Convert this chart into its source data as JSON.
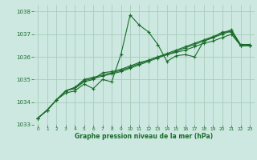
{
  "bg_color": "#cce8e0",
  "grid_color": "#aaccbb",
  "line_color": "#1a6b2a",
  "marker_color": "#1a6b2a",
  "xlabel": "Graphe pression niveau de la mer (hPa)",
  "xlabel_color": "#1a6b2a",
  "ylim": [
    1033.0,
    1038.3
  ],
  "xlim": [
    -0.5,
    23.5
  ],
  "yticks": [
    1033,
    1034,
    1035,
    1036,
    1037,
    1038
  ],
  "xticks": [
    0,
    1,
    2,
    3,
    4,
    5,
    6,
    7,
    8,
    9,
    10,
    11,
    12,
    13,
    14,
    15,
    16,
    17,
    18,
    19,
    20,
    21,
    22,
    23
  ],
  "xtick_labels": [
    "0",
    "1",
    "2",
    "3",
    "4",
    "5",
    "6",
    "7",
    "8",
    "9",
    "10",
    "11",
    "12",
    "13",
    "14",
    "15",
    "16",
    "17",
    "18",
    "19",
    "20",
    "21",
    "22",
    "23"
  ],
  "series": [
    [
      1033.3,
      1033.65,
      1034.1,
      1034.4,
      1034.5,
      1034.8,
      1034.6,
      1035.0,
      1034.9,
      1036.1,
      1037.85,
      1037.4,
      1037.1,
      1036.55,
      1035.8,
      1036.05,
      1036.1,
      1036.0,
      1036.7,
      1036.85,
      1037.1,
      1037.1,
      1036.5,
      1036.5
    ],
    [
      1033.3,
      1033.65,
      1034.1,
      1034.5,
      1034.6,
      1034.9,
      1035.0,
      1035.3,
      1035.35,
      1035.45,
      1035.6,
      1035.75,
      1035.85,
      1036.0,
      1036.1,
      1036.2,
      1036.3,
      1036.45,
      1036.6,
      1036.7,
      1036.85,
      1037.0,
      1036.5,
      1036.5
    ],
    [
      1033.3,
      1033.65,
      1034.1,
      1034.5,
      1034.65,
      1034.95,
      1035.05,
      1035.15,
      1035.25,
      1035.35,
      1035.5,
      1035.65,
      1035.8,
      1035.95,
      1036.1,
      1036.25,
      1036.4,
      1036.55,
      1036.7,
      1036.85,
      1037.0,
      1037.15,
      1036.5,
      1036.5
    ],
    [
      1033.3,
      1033.65,
      1034.1,
      1034.5,
      1034.65,
      1035.0,
      1035.1,
      1035.2,
      1035.3,
      1035.4,
      1035.55,
      1035.7,
      1035.85,
      1036.0,
      1036.15,
      1036.3,
      1036.45,
      1036.6,
      1036.75,
      1036.9,
      1037.05,
      1037.2,
      1036.55,
      1036.55
    ]
  ]
}
